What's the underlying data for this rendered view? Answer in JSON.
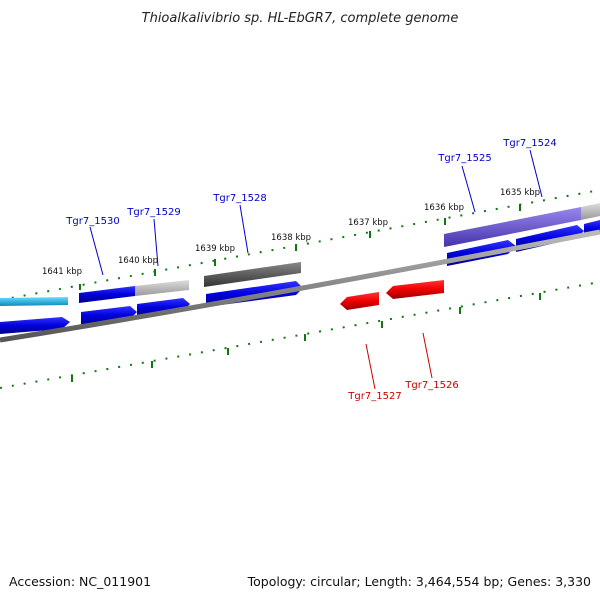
{
  "title": "Thioalkalivibrio sp. HL-EbGR7, complete genome",
  "footer": {
    "accession": "Accession: NC_011901",
    "summary": "Topology: circular; Length: 3,464,554 bp; Genes: 3,330"
  },
  "scale_labels": [
    "1641 kbp",
    "1640 kbp",
    "1639 kbp",
    "1638 kbp",
    "1637 kbp",
    "1636 kbp",
    "1635 kbp"
  ],
  "genes": [
    {
      "label": "Tgr7_1530",
      "strand": "+",
      "color": "#0000cc"
    },
    {
      "label": "Tgr7_1529",
      "strand": "+",
      "color": "#0000cc"
    },
    {
      "label": "Tgr7_1528",
      "strand": "+",
      "color": "#0000cc"
    },
    {
      "label": "Tgr7_1527",
      "strand": "-",
      "color": "#dd0000"
    },
    {
      "label": "Tgr7_1526",
      "strand": "-",
      "color": "#dd0000"
    },
    {
      "label": "Tgr7_1525",
      "strand": "+",
      "color": "#0000cc"
    },
    {
      "label": "Tgr7_1524",
      "strand": "+",
      "color": "#0000cc"
    }
  ],
  "colors": {
    "forward_cds": "#0000cc",
    "reverse_cds": "#dd0000",
    "tick": "#117711",
    "backbone": "#888888",
    "cog_cyan": "#22aadd",
    "cog_gray": "#bbbbbb",
    "cog_dark": "#555555",
    "cog_purple": "#6655cc"
  }
}
